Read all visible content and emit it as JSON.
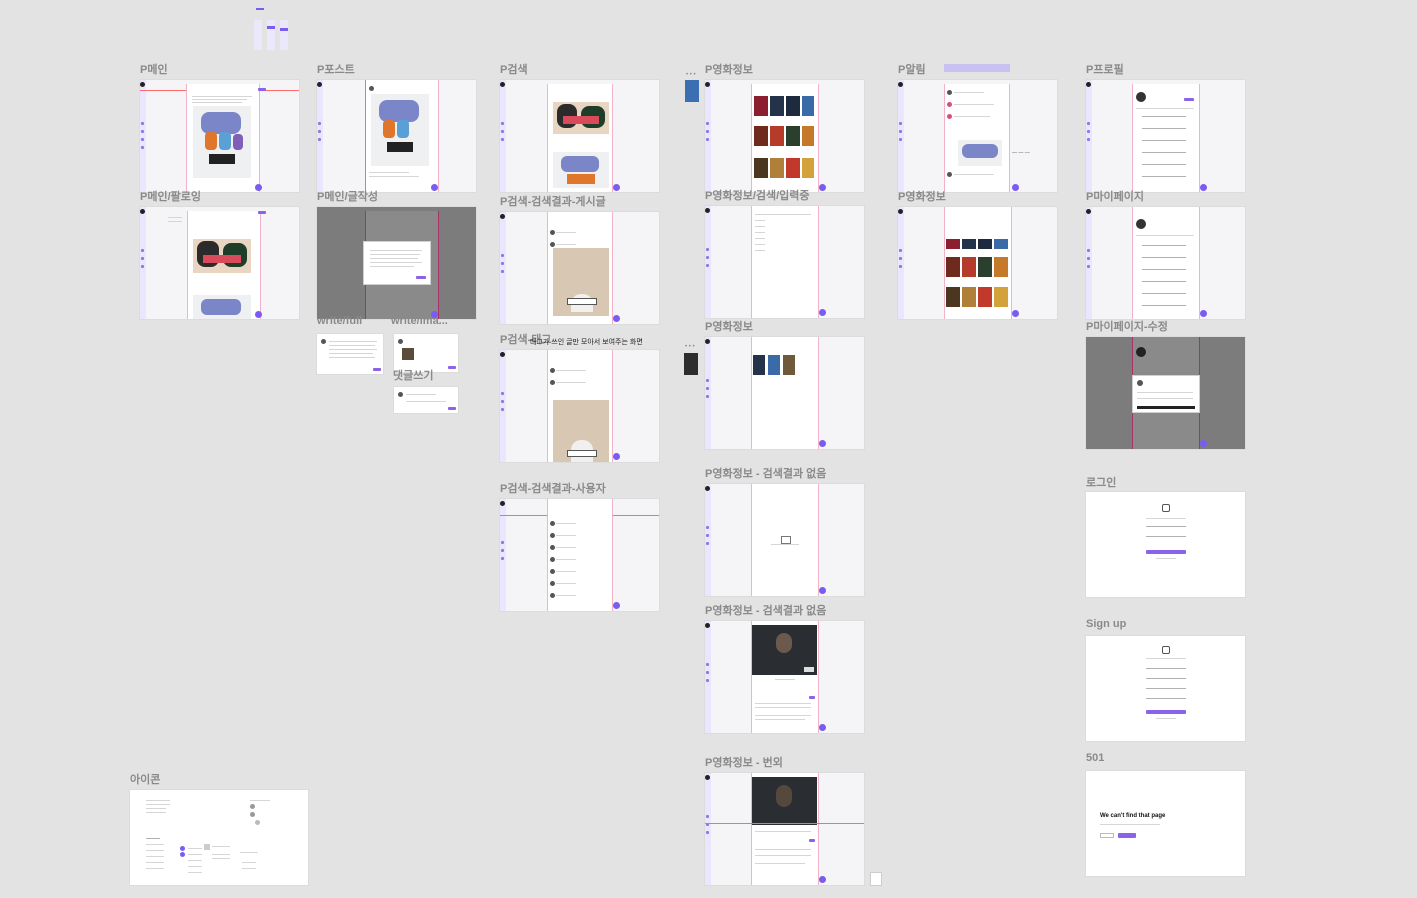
{
  "frames": {
    "main": "P메인",
    "post": "P포스트",
    "search": "P검색",
    "movie": "P영화정보",
    "alarm": "P알림",
    "profile": "P프로필",
    "main_following": "P메인/팔로잉",
    "main_write": "P메인/글작성",
    "search_posts": "P검색-검색결과-게시글",
    "movie_search_typing": "P영화정보/검색/입력중",
    "movie_2": "P영화정보",
    "mypage": "P마이페이지",
    "write_full": "write/full",
    "write_image": "write/ima...",
    "comment_write": "댓글쓰기",
    "search_tag": "P검색-태그",
    "movie_3": "P영화정보",
    "mypage_edit": "P마이페이지-수정",
    "search_users": "P검색-검색결과-사용자",
    "movie_no_results_1": "P영화정보 - 검색결과 없음",
    "login": "로그인",
    "movie_no_results_2": "P영화정보 - 검색결과 없음",
    "signup": "Sign up",
    "movie_extra": "P영화정보 - 번외",
    "error_501": "501",
    "icons": "아이콘"
  },
  "tag_note": "태그가 쓰인 글만 모아서 보여주는 화면",
  "error_page": {
    "title": "We can't find that page"
  },
  "colors": {
    "canvas": "#e3e3e3",
    "accent": "#7a5cf0",
    "sidebar": "#ebe6ff",
    "guide": "#ff6b6b"
  }
}
